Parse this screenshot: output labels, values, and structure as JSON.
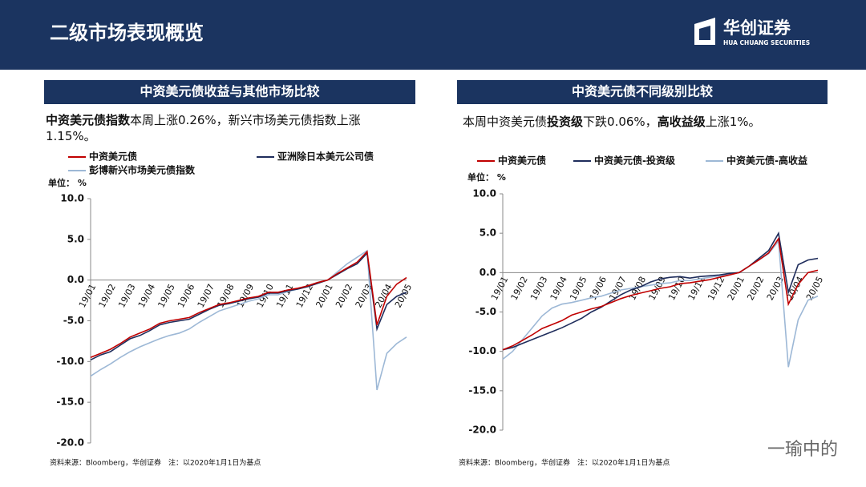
{
  "header": {
    "title": "二级市场表现概览",
    "logo_cn": "华创证券",
    "logo_en": "HUA CHUANG SECURITIES"
  },
  "watermark": "一瑜中的",
  "chart_data": [
    {
      "type": "line",
      "title": "中资美元债收益与其他市场比较",
      "subtitle": [
        {
          "text": "中资美元债指数",
          "bold": true
        },
        {
          "text": "本周上涨0.26%，新兴市场美元债指数上涨1.15%。",
          "bold": false
        }
      ],
      "unit": "单位： %",
      "source": "资料来源：Bloomberg，华创证券　注：以2020年1月1日为基点",
      "categories": [
        "19/01",
        null,
        "19/02",
        null,
        "19/03",
        null,
        "19/04",
        null,
        "19/05",
        null,
        "19/06",
        null,
        "19/07",
        null,
        "19/08",
        null,
        "19/09",
        null,
        "19/10",
        null,
        "19/11",
        null,
        "19/12",
        null,
        "20/01",
        null,
        "20/02",
        null,
        "20/03",
        null,
        "20/04",
        null,
        "20/05"
      ],
      "ylim": [
        -20,
        10
      ],
      "yticks": [
        {
          "value": -20,
          "label": "-20.0"
        },
        {
          "value": -15,
          "label": "-15.0"
        },
        {
          "value": -10,
          "label": "-10.0"
        },
        {
          "value": -5,
          "label": "-5.0"
        },
        {
          "value": 0,
          "label": "0.0"
        },
        {
          "value": 5,
          "label": "5.0"
        },
        {
          "value": 10,
          "label": "10.0"
        }
      ],
      "series": [
        {
          "name": "中资美元债",
          "color": "#c00000",
          "values": [
            -9.5,
            -9,
            -8.5,
            -7.8,
            -7,
            -6.5,
            -6,
            -5.3,
            -5,
            -4.8,
            -4.6,
            -4,
            -3.5,
            -3,
            -2.8,
            -2.5,
            -2.2,
            -2,
            -1.5,
            -1.5,
            -1.2,
            -1,
            -0.7,
            -0.3,
            0,
            0.8,
            1.5,
            2.2,
            3.5,
            -5.5,
            -2,
            -0.5,
            0.3
          ]
        },
        {
          "name": "亚洲除日本美元公司债",
          "color": "#1f2d5c",
          "values": [
            -9.8,
            -9.2,
            -8.8,
            -8,
            -7.2,
            -6.8,
            -6.2,
            -5.5,
            -5.2,
            -5,
            -4.8,
            -4.2,
            -3.6,
            -3.1,
            -2.9,
            -2.6,
            -2.3,
            -2.1,
            -1.6,
            -1.6,
            -1.3,
            -1.1,
            -0.8,
            -0.4,
            0,
            0.7,
            1.4,
            2,
            3.3,
            -6,
            -3,
            -2,
            -1.5
          ]
        },
        {
          "name": "彭博新兴市场美元债指数",
          "color": "#9db8d6",
          "values": [
            -11.8,
            -11,
            -10.3,
            -9.5,
            -8.8,
            -8.2,
            -7.7,
            -7.2,
            -6.8,
            -6.5,
            -6,
            -5.2,
            -4.5,
            -3.8,
            -3.4,
            -3,
            -2.6,
            -2.3,
            -1.8,
            -1.8,
            -1.4,
            -1.1,
            -0.7,
            -0.3,
            0,
            1,
            2,
            2.8,
            3.6,
            -13.5,
            -9,
            -7.8,
            -7
          ]
        }
      ]
    },
    {
      "type": "line",
      "title": "中资美元债不同级别比较",
      "subtitle": [
        {
          "text": "本周中资美元债",
          "bold": false
        },
        {
          "text": "投资级",
          "bold": true
        },
        {
          "text": "下跌0.06%，",
          "bold": false
        },
        {
          "text": "高收益级",
          "bold": true
        },
        {
          "text": "上涨1%。",
          "bold": false
        }
      ],
      "unit": "单位： %",
      "source": "资料来源：Bloomberg，华创证券　注：以2020年1月1日为基点",
      "categories": [
        "19/01",
        null,
        "19/02",
        null,
        "19/03",
        null,
        "19/04",
        null,
        "19/05",
        null,
        "19/06",
        null,
        "19/07",
        null,
        "19/08",
        null,
        "19/09",
        null,
        "19/10",
        null,
        "19/11",
        null,
        "19/12",
        null,
        "20/01",
        null,
        "20/02",
        null,
        "20/03",
        null,
        "20/04",
        null,
        "20/05"
      ],
      "ylim": [
        -20,
        10
      ],
      "yticks": [
        {
          "value": -20,
          "label": "-20.0"
        },
        {
          "value": -15,
          "label": "-15.0"
        },
        {
          "value": -10,
          "label": "-10.0"
        },
        {
          "value": -5,
          "label": "-5.0"
        },
        {
          "value": 0,
          "label": "0.0"
        },
        {
          "value": 5,
          "label": "5.0"
        },
        {
          "value": 10,
          "label": "10.0"
        }
      ],
      "series": [
        {
          "name": "中资美元债",
          "color": "#c00000",
          "values": [
            -9.8,
            -9.3,
            -8.6,
            -7.9,
            -7.1,
            -6.6,
            -6.1,
            -5.4,
            -5,
            -4.6,
            -4.3,
            -3.8,
            -3.3,
            -2.9,
            -2.6,
            -2.3,
            -2,
            -1.8,
            -1.4,
            -1.3,
            -1.1,
            -0.9,
            -0.6,
            -0.3,
            0,
            0.8,
            1.6,
            2.5,
            4.3,
            -4,
            -1.5,
            0,
            0.3
          ]
        },
        {
          "name": "中资美元债-投资级",
          "color": "#1f2d5c",
          "values": [
            -9.8,
            -9.5,
            -9,
            -8.5,
            -8,
            -7.5,
            -7,
            -6.4,
            -5.8,
            -5,
            -4.4,
            -3.6,
            -2.8,
            -2.2,
            -1.8,
            -1.2,
            -0.8,
            -0.6,
            -0.5,
            -0.7,
            -0.5,
            -0.4,
            -0.3,
            -0.1,
            0,
            0.8,
            1.8,
            2.8,
            5,
            -2.5,
            1,
            1.6,
            1.8
          ]
        },
        {
          "name": "中资美元债-高收益",
          "color": "#9db8d6",
          "values": [
            -11,
            -10,
            -8.5,
            -7,
            -5.5,
            -4.5,
            -4,
            -3.8,
            -3.5,
            -3.2,
            -3,
            -2.6,
            -2.2,
            -2,
            -1.8,
            -1.6,
            -1.4,
            -1.3,
            -1,
            -1,
            -0.8,
            -0.6,
            -0.4,
            -0.2,
            0,
            0.8,
            1.6,
            2.4,
            4,
            -12,
            -6,
            -3.5,
            -3
          ]
        }
      ]
    }
  ]
}
